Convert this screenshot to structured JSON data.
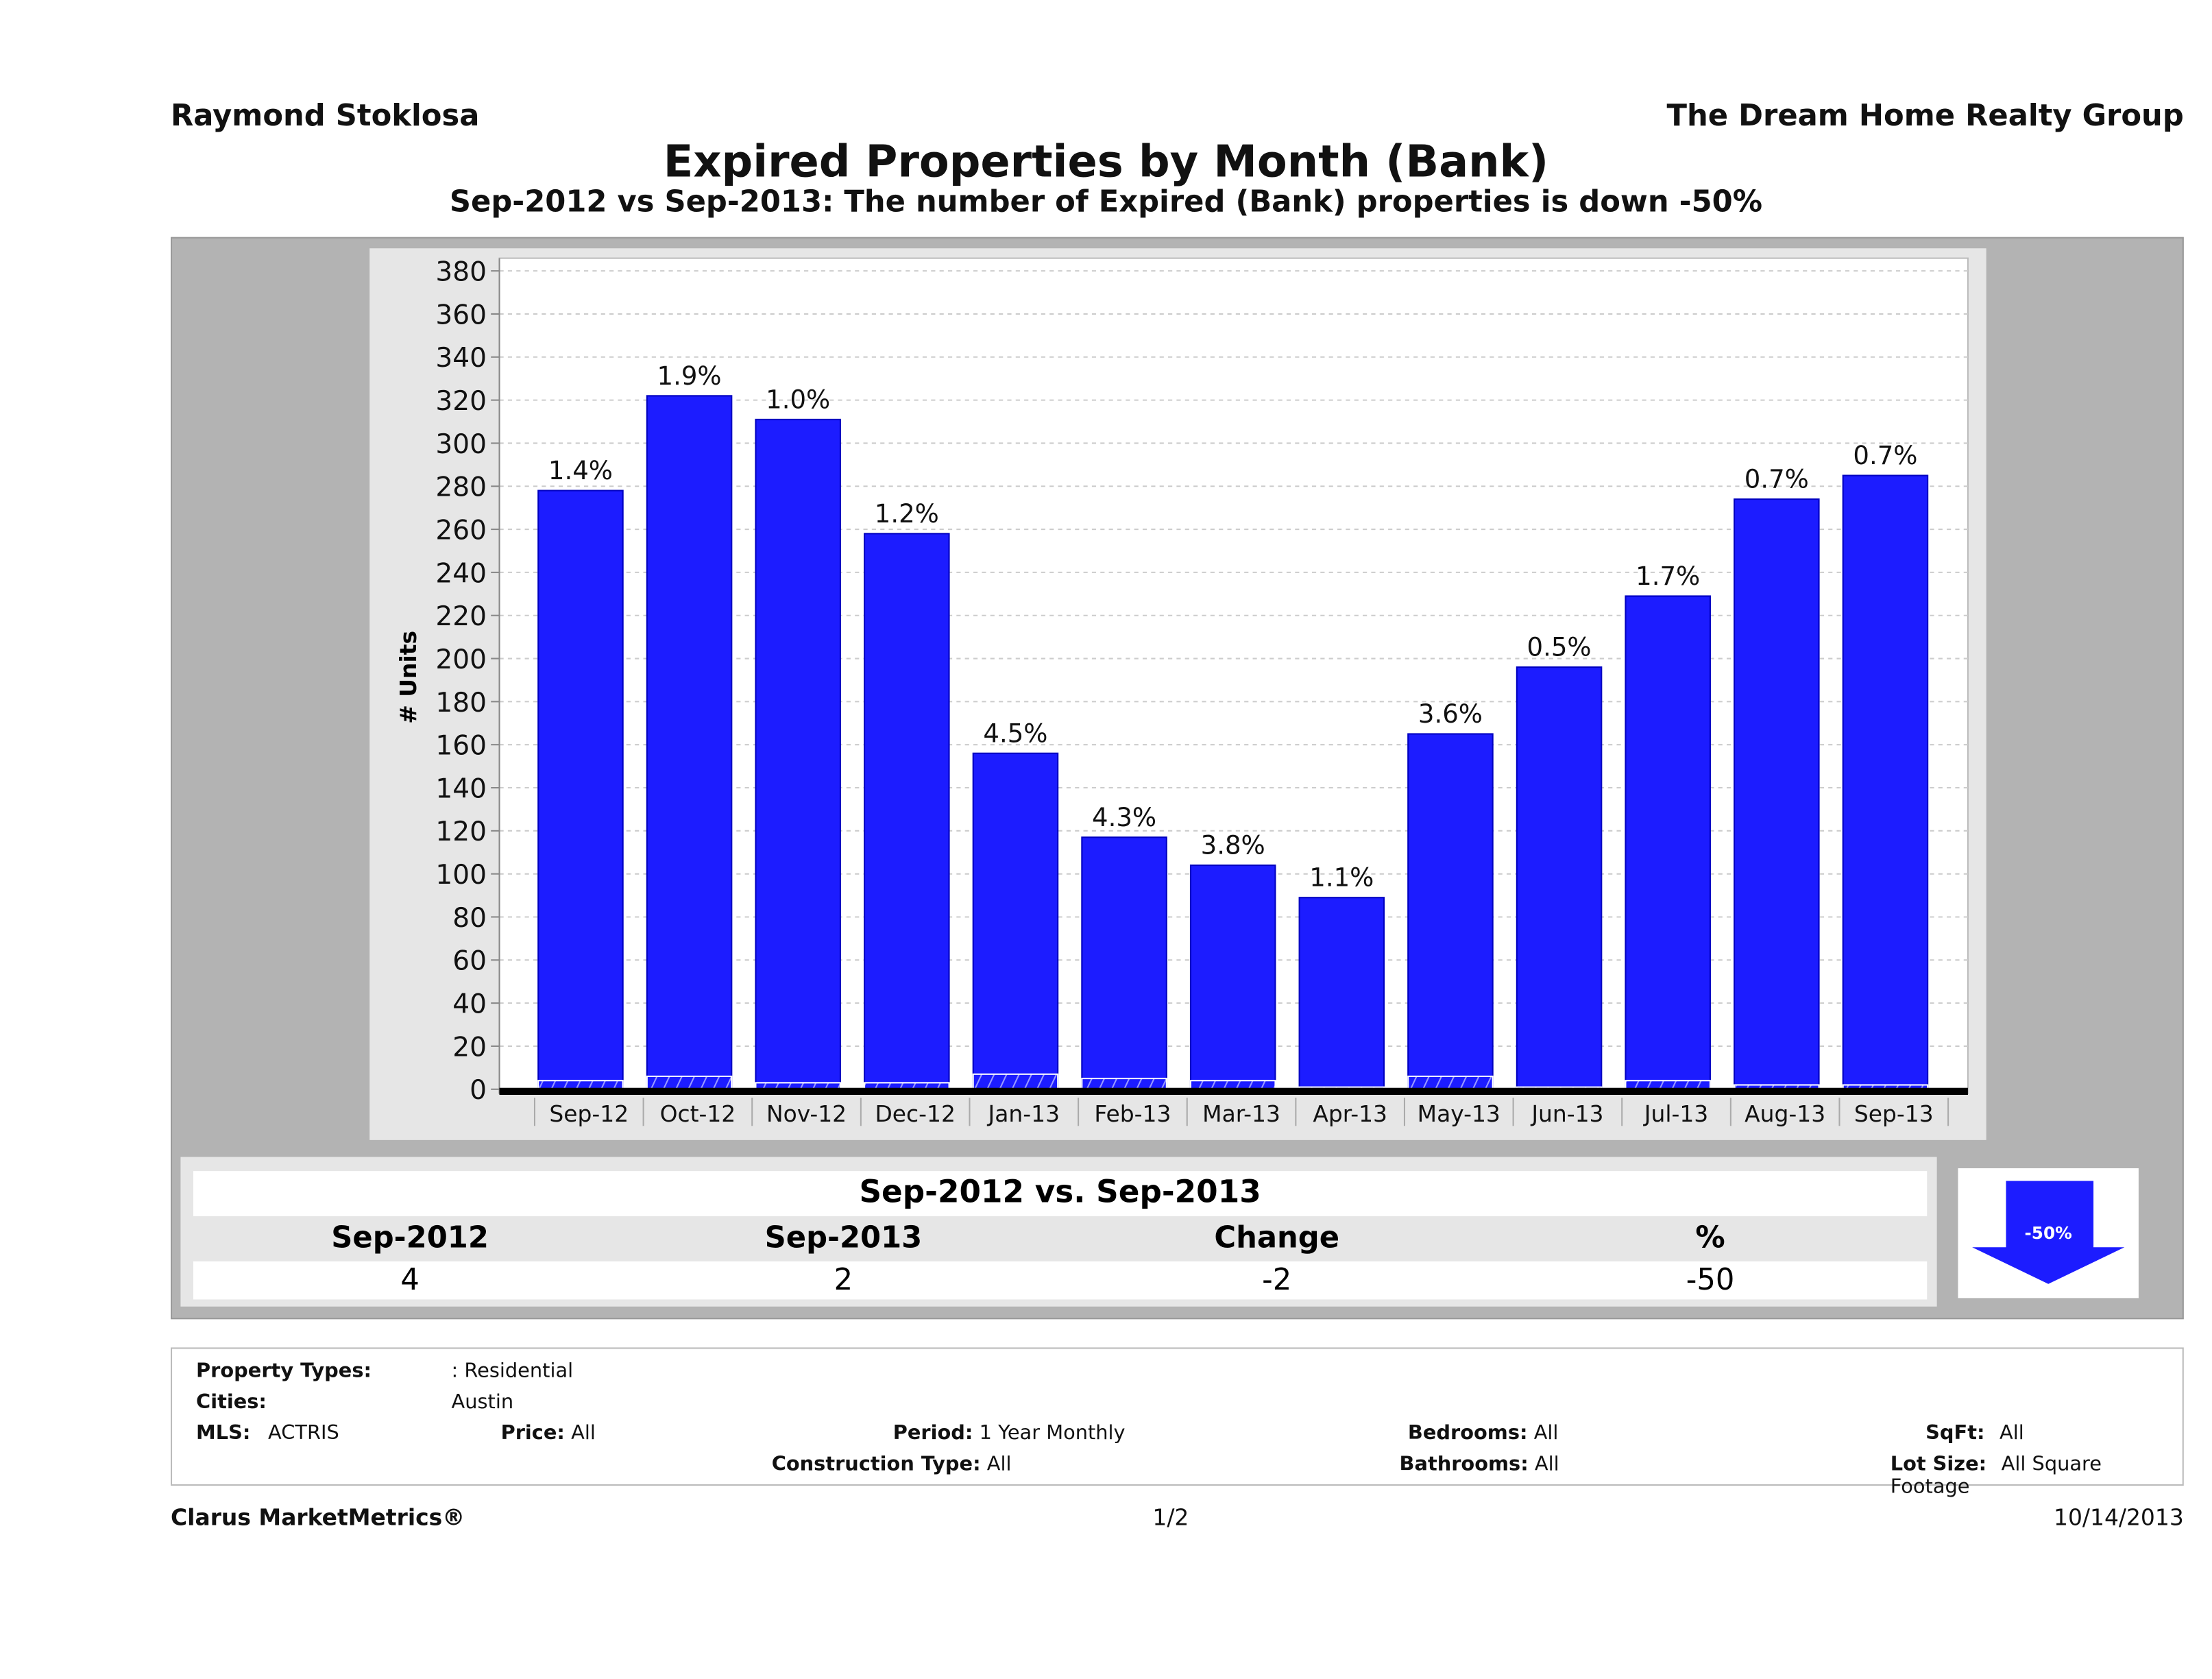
{
  "header": {
    "agent": "Raymond Stoklosa",
    "company": "The Dream Home Realty Group",
    "title": "Expired Properties by Month (Bank)",
    "subtitle": "Sep-2012 vs Sep-2013: The number of Expired (Bank)  properties is down -50%"
  },
  "chart_data": {
    "type": "bar",
    "ylabel": "# Units",
    "ylim": [
      0,
      380
    ],
    "ytick_step": 20,
    "grid": true,
    "categories": [
      "Sep-12",
      "Oct-12",
      "Nov-12",
      "Dec-12",
      "Jan-13",
      "Feb-13",
      "Mar-13",
      "Apr-13",
      "May-13",
      "Jun-13",
      "Jul-13",
      "Aug-13",
      "Sep-13"
    ],
    "series": [
      {
        "values": [
          278,
          322,
          311,
          258,
          156,
          117,
          104,
          89,
          165,
          196,
          229,
          274,
          285
        ],
        "color": "#1c1cff"
      },
      {
        "values": [
          4,
          6,
          3,
          3,
          7,
          5,
          4,
          1,
          6,
          1,
          4,
          2,
          2
        ],
        "color": "#1c1cff",
        "pattern": "hatched"
      }
    ],
    "data_labels": [
      "1.4%",
      "1.9%",
      "1.0%",
      "1.2%",
      "4.5%",
      "4.3%",
      "3.8%",
      "1.1%",
      "3.6%",
      "0.5%",
      "1.7%",
      "0.7%",
      "0.7%"
    ]
  },
  "summary": {
    "title": "Sep-2012 vs. Sep-2013",
    "headers": [
      "Sep-2012",
      "Sep-2013",
      "Change",
      "%"
    ],
    "values": [
      "4",
      "2",
      "-2",
      "-50"
    ],
    "badge": "-50%",
    "badge_color": "#1c1cff"
  },
  "filters": {
    "property_types_label": "Property Types:",
    "property_types": ": Residential",
    "cities_label": "Cities:",
    "cities": "Austin",
    "mls_label": "MLS:",
    "mls": "ACTRIS",
    "price_label": "Price:",
    "price": "All",
    "period_label": "Period:",
    "period": "1 Year Monthly",
    "construction_label": "Construction Type:",
    "construction": "All",
    "bedrooms_label": "Bedrooms:",
    "bedrooms": "All",
    "bathrooms_label": "Bathrooms:",
    "bathrooms": "All",
    "sqft_label": "SqFt:",
    "sqft": "All",
    "lot_label": "Lot Size:",
    "lot": "All Square Footage"
  },
  "footer": {
    "brand": "Clarus MarketMetrics®",
    "page": "1/2",
    "date": "10/14/2013"
  }
}
